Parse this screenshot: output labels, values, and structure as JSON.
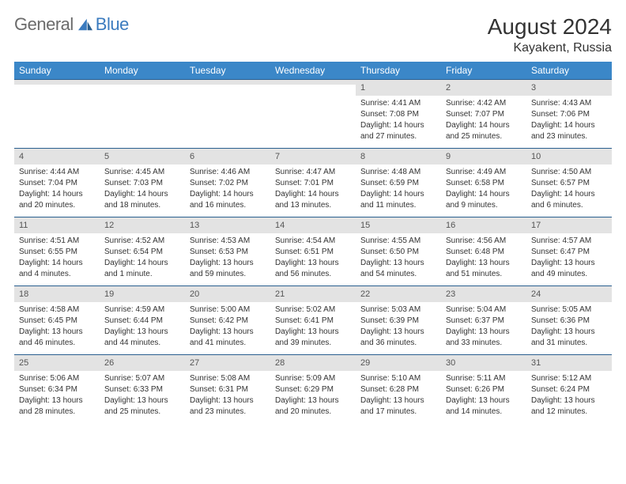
{
  "brand": {
    "part1": "General",
    "part2": "Blue"
  },
  "title": "August 2024",
  "location": "Kayakent, Russia",
  "colors": {
    "headerBg": "#3b87c8",
    "headerText": "#ffffff",
    "dayNumBg": "#e3e3e3",
    "rowBorder": "#2a5f8f",
    "logoBlue": "#3b7bbf",
    "logoGray": "#6b6b6b",
    "text": "#333333",
    "background": "#ffffff"
  },
  "weekdays": [
    "Sunday",
    "Monday",
    "Tuesday",
    "Wednesday",
    "Thursday",
    "Friday",
    "Saturday"
  ],
  "weeks": [
    [
      {
        "n": "",
        "lines": []
      },
      {
        "n": "",
        "lines": []
      },
      {
        "n": "",
        "lines": []
      },
      {
        "n": "",
        "lines": []
      },
      {
        "n": "1",
        "lines": [
          "Sunrise: 4:41 AM",
          "Sunset: 7:08 PM",
          "Daylight: 14 hours",
          "and 27 minutes."
        ]
      },
      {
        "n": "2",
        "lines": [
          "Sunrise: 4:42 AM",
          "Sunset: 7:07 PM",
          "Daylight: 14 hours",
          "and 25 minutes."
        ]
      },
      {
        "n": "3",
        "lines": [
          "Sunrise: 4:43 AM",
          "Sunset: 7:06 PM",
          "Daylight: 14 hours",
          "and 23 minutes."
        ]
      }
    ],
    [
      {
        "n": "4",
        "lines": [
          "Sunrise: 4:44 AM",
          "Sunset: 7:04 PM",
          "Daylight: 14 hours",
          "and 20 minutes."
        ]
      },
      {
        "n": "5",
        "lines": [
          "Sunrise: 4:45 AM",
          "Sunset: 7:03 PM",
          "Daylight: 14 hours",
          "and 18 minutes."
        ]
      },
      {
        "n": "6",
        "lines": [
          "Sunrise: 4:46 AM",
          "Sunset: 7:02 PM",
          "Daylight: 14 hours",
          "and 16 minutes."
        ]
      },
      {
        "n": "7",
        "lines": [
          "Sunrise: 4:47 AM",
          "Sunset: 7:01 PM",
          "Daylight: 14 hours",
          "and 13 minutes."
        ]
      },
      {
        "n": "8",
        "lines": [
          "Sunrise: 4:48 AM",
          "Sunset: 6:59 PM",
          "Daylight: 14 hours",
          "and 11 minutes."
        ]
      },
      {
        "n": "9",
        "lines": [
          "Sunrise: 4:49 AM",
          "Sunset: 6:58 PM",
          "Daylight: 14 hours",
          "and 9 minutes."
        ]
      },
      {
        "n": "10",
        "lines": [
          "Sunrise: 4:50 AM",
          "Sunset: 6:57 PM",
          "Daylight: 14 hours",
          "and 6 minutes."
        ]
      }
    ],
    [
      {
        "n": "11",
        "lines": [
          "Sunrise: 4:51 AM",
          "Sunset: 6:55 PM",
          "Daylight: 14 hours",
          "and 4 minutes."
        ]
      },
      {
        "n": "12",
        "lines": [
          "Sunrise: 4:52 AM",
          "Sunset: 6:54 PM",
          "Daylight: 14 hours",
          "and 1 minute."
        ]
      },
      {
        "n": "13",
        "lines": [
          "Sunrise: 4:53 AM",
          "Sunset: 6:53 PM",
          "Daylight: 13 hours",
          "and 59 minutes."
        ]
      },
      {
        "n": "14",
        "lines": [
          "Sunrise: 4:54 AM",
          "Sunset: 6:51 PM",
          "Daylight: 13 hours",
          "and 56 minutes."
        ]
      },
      {
        "n": "15",
        "lines": [
          "Sunrise: 4:55 AM",
          "Sunset: 6:50 PM",
          "Daylight: 13 hours",
          "and 54 minutes."
        ]
      },
      {
        "n": "16",
        "lines": [
          "Sunrise: 4:56 AM",
          "Sunset: 6:48 PM",
          "Daylight: 13 hours",
          "and 51 minutes."
        ]
      },
      {
        "n": "17",
        "lines": [
          "Sunrise: 4:57 AM",
          "Sunset: 6:47 PM",
          "Daylight: 13 hours",
          "and 49 minutes."
        ]
      }
    ],
    [
      {
        "n": "18",
        "lines": [
          "Sunrise: 4:58 AM",
          "Sunset: 6:45 PM",
          "Daylight: 13 hours",
          "and 46 minutes."
        ]
      },
      {
        "n": "19",
        "lines": [
          "Sunrise: 4:59 AM",
          "Sunset: 6:44 PM",
          "Daylight: 13 hours",
          "and 44 minutes."
        ]
      },
      {
        "n": "20",
        "lines": [
          "Sunrise: 5:00 AM",
          "Sunset: 6:42 PM",
          "Daylight: 13 hours",
          "and 41 minutes."
        ]
      },
      {
        "n": "21",
        "lines": [
          "Sunrise: 5:02 AM",
          "Sunset: 6:41 PM",
          "Daylight: 13 hours",
          "and 39 minutes."
        ]
      },
      {
        "n": "22",
        "lines": [
          "Sunrise: 5:03 AM",
          "Sunset: 6:39 PM",
          "Daylight: 13 hours",
          "and 36 minutes."
        ]
      },
      {
        "n": "23",
        "lines": [
          "Sunrise: 5:04 AM",
          "Sunset: 6:37 PM",
          "Daylight: 13 hours",
          "and 33 minutes."
        ]
      },
      {
        "n": "24",
        "lines": [
          "Sunrise: 5:05 AM",
          "Sunset: 6:36 PM",
          "Daylight: 13 hours",
          "and 31 minutes."
        ]
      }
    ],
    [
      {
        "n": "25",
        "lines": [
          "Sunrise: 5:06 AM",
          "Sunset: 6:34 PM",
          "Daylight: 13 hours",
          "and 28 minutes."
        ]
      },
      {
        "n": "26",
        "lines": [
          "Sunrise: 5:07 AM",
          "Sunset: 6:33 PM",
          "Daylight: 13 hours",
          "and 25 minutes."
        ]
      },
      {
        "n": "27",
        "lines": [
          "Sunrise: 5:08 AM",
          "Sunset: 6:31 PM",
          "Daylight: 13 hours",
          "and 23 minutes."
        ]
      },
      {
        "n": "28",
        "lines": [
          "Sunrise: 5:09 AM",
          "Sunset: 6:29 PM",
          "Daylight: 13 hours",
          "and 20 minutes."
        ]
      },
      {
        "n": "29",
        "lines": [
          "Sunrise: 5:10 AM",
          "Sunset: 6:28 PM",
          "Daylight: 13 hours",
          "and 17 minutes."
        ]
      },
      {
        "n": "30",
        "lines": [
          "Sunrise: 5:11 AM",
          "Sunset: 6:26 PM",
          "Daylight: 13 hours",
          "and 14 minutes."
        ]
      },
      {
        "n": "31",
        "lines": [
          "Sunrise: 5:12 AM",
          "Sunset: 6:24 PM",
          "Daylight: 13 hours",
          "and 12 minutes."
        ]
      }
    ]
  ]
}
